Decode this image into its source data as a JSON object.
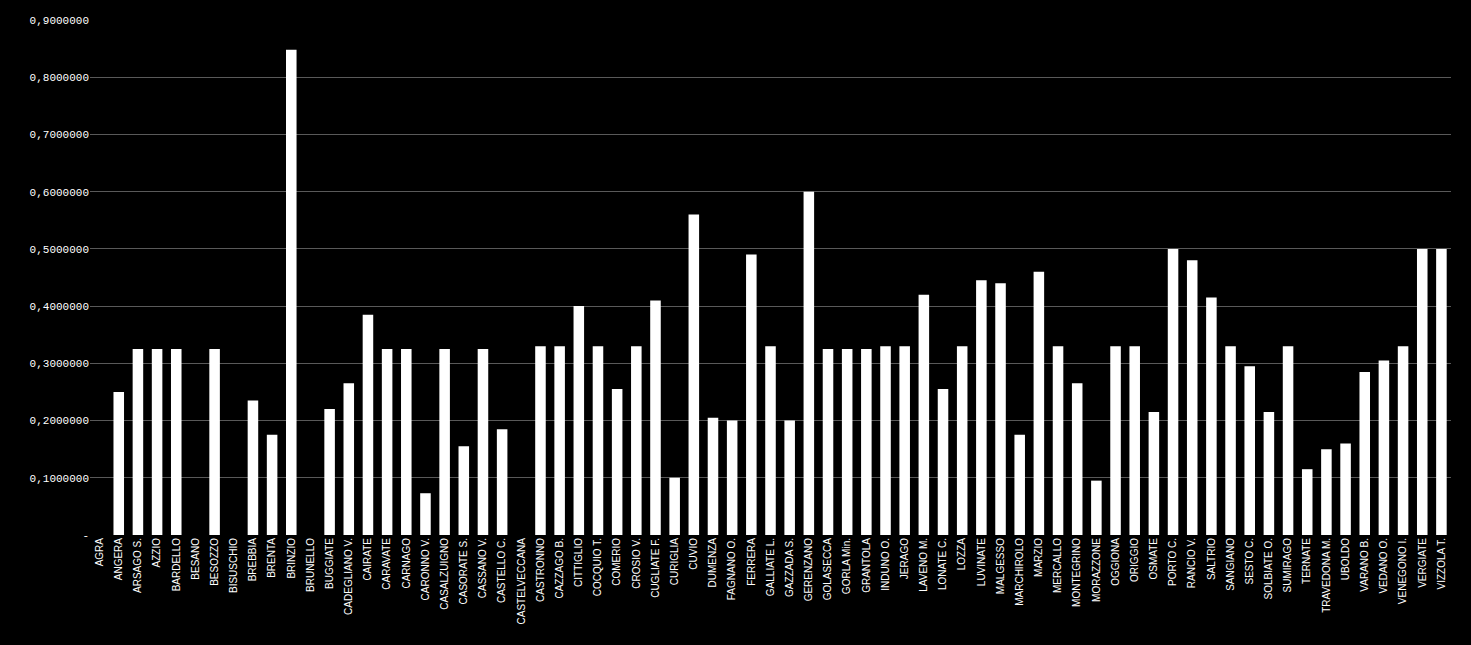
{
  "chart_data": {
    "type": "bar",
    "categories": [
      "AGRA",
      "ANGERA",
      "ARSAGO S.",
      "AZZIO",
      "BARDELLO",
      "BESANO",
      "BESOZZO",
      "BISUSCHIO",
      "BREBBIA",
      "BRENTA",
      "BRINZIO",
      "BRUNELLO",
      "BUGGIATE",
      "CADEGLIANO V.",
      "CAIRATE",
      "CARAVATE",
      "CARNAGO",
      "CARONNO V.",
      "CASALZUIGNO",
      "CASORATE S.",
      "CASSANO V.",
      "CASTELLO C.",
      "CASTELVECCANA",
      "CASTRONNO",
      "CAZZAGO B.",
      "CITTIGLIO",
      "COCQUIO T.",
      "COMERIO",
      "CROSIO V.",
      "CUGLIATE F.",
      "CURIGLIA",
      "CUVIO",
      "DUMENZA",
      "FAGNANO O.",
      "FERRERA",
      "GALLIATE L.",
      "GAZZADA S.",
      "GERENZANO",
      "GOLASECCA",
      "GORLA Min.",
      "GRANTOLA",
      "INDUNO O.",
      "JERAGO",
      "LAVENO M.",
      "LONATE C.",
      "LOZZA",
      "LUVINATE",
      "MALGESSO",
      "MARCHIROLO",
      "MARZIO",
      "MERCALLO",
      "MONTEGRINO",
      "MORAZZONE",
      "OGGIONA",
      "ORIGGIO",
      "OSMATE",
      "PORTO C.",
      "RANCIO V.",
      "SALTRIO",
      "SANGIANO",
      "SESTO C.",
      "SOLBIATE O.",
      "SUMIRAGO",
      "TERNATE",
      "TRAVEDONA M.",
      "UBOLDO",
      "VARANO B.",
      "VEDANO O.",
      "VENEGONO I.",
      "VERGIATE",
      "VIZZOLA T."
    ],
    "values": [
      0.0,
      0.25,
      0.325,
      0.325,
      0.325,
      0.0,
      0.325,
      0.0,
      0.235,
      0.175,
      0.848,
      0.0,
      0.22,
      0.265,
      0.385,
      0.325,
      0.325,
      0.073,
      0.325,
      0.155,
      0.325,
      0.185,
      0.0,
      0.33,
      0.33,
      0.4,
      0.33,
      0.255,
      0.33,
      0.41,
      0.1,
      0.56,
      0.205,
      0.2,
      0.49,
      0.33,
      0.2,
      0.6,
      0.325,
      0.325,
      0.325,
      0.33,
      0.33,
      0.42,
      0.255,
      0.33,
      0.445,
      0.44,
      0.175,
      0.46,
      0.33,
      0.265,
      0.095,
      0.33,
      0.33,
      0.215,
      0.5,
      0.48,
      0.415,
      0.33,
      0.295,
      0.215,
      0.33,
      0.115,
      0.15,
      0.16,
      0.285,
      0.305,
      0.33,
      0.5,
      0.5
    ],
    "color": "#ffffff",
    "ylim": [
      0,
      0.9
    ],
    "yticks": [
      {
        "value": 0.0,
        "label": " -"
      },
      {
        "value": 0.1,
        "label": "0,1000000"
      },
      {
        "value": 0.2,
        "label": "0,2000000"
      },
      {
        "value": 0.3,
        "label": "0,3000000"
      },
      {
        "value": 0.4,
        "label": "0,4000000"
      },
      {
        "value": 0.5,
        "label": "0,5000000"
      },
      {
        "value": 0.6,
        "label": "0,6000000"
      },
      {
        "value": 0.7,
        "label": "0,7000000"
      },
      {
        "value": 0.8,
        "label": "0,8000000"
      },
      {
        "value": 0.9,
        "label": "0,9000000"
      }
    ],
    "grid": true
  }
}
